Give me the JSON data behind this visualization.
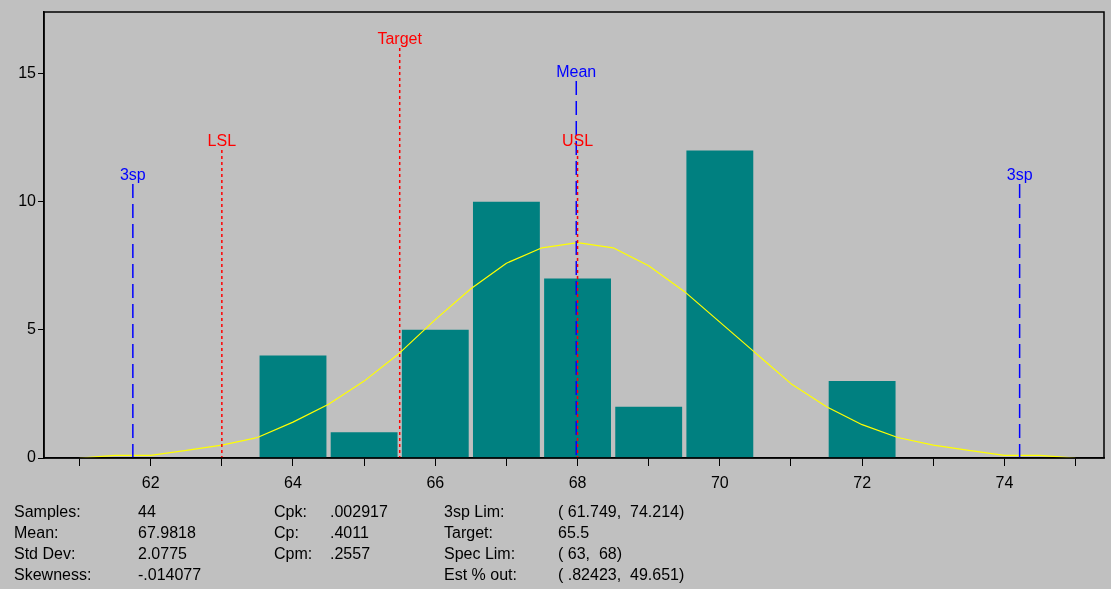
{
  "chart_data": {
    "type": "histogram",
    "bins": [
      63.5,
      64.5,
      65.5,
      66.5,
      67.5,
      68.5,
      69.5,
      70.5,
      71.5,
      72.5
    ],
    "values": [
      4,
      1,
      5,
      10,
      7,
      2,
      12,
      0,
      3
    ],
    "color": "#008080",
    "series": [
      {
        "type": "line",
        "color": "#ffff00",
        "x": [
          61,
          61.5,
          62,
          62.5,
          63,
          63.5,
          64,
          64.5,
          65,
          65.5,
          66,
          66.5,
          67,
          67.5,
          68,
          68.5,
          69,
          69.5,
          70,
          70.5,
          71,
          71.5,
          72,
          72.5,
          73,
          73.5,
          74,
          74.5,
          75
        ],
        "values": [
          0.0,
          0.1,
          0.1,
          0.3,
          0.5,
          0.8,
          1.4,
          2.1,
          3.0,
          4.1,
          5.4,
          6.6,
          7.6,
          8.2,
          8.4,
          8.2,
          7.5,
          6.5,
          5.3,
          4.1,
          2.9,
          2.0,
          1.3,
          0.8,
          0.5,
          0.3,
          0.1,
          0.1,
          0.0
        ]
      }
    ],
    "xlim": [
      60.5,
      75.4
    ],
    "xticks": [
      {
        "value": 61,
        "label": null
      },
      62,
      {
        "value": 63,
        "label": null
      },
      64,
      {
        "value": 65,
        "label": null
      },
      66,
      {
        "value": 67,
        "label": null
      },
      68,
      {
        "value": 69,
        "label": null
      },
      70,
      {
        "value": 71,
        "label": null
      },
      72,
      {
        "value": 73,
        "label": null
      },
      74,
      {
        "value": 75,
        "label": null
      }
    ],
    "ylim": [
      0,
      17.4
    ],
    "yticks": [
      0,
      5,
      10,
      15
    ],
    "ref_lines": [
      {
        "axis": "x",
        "value": 61.749,
        "label": "3sp",
        "color": "#0000ff",
        "line_style": "dashed"
      },
      {
        "axis": "x",
        "value": 63,
        "label": "LSL",
        "color": "#ff0000",
        "line_style": "dotted"
      },
      {
        "axis": "x",
        "value": 65.5,
        "label": "Target",
        "color": "#ff0000",
        "line_style": "dotted"
      },
      {
        "axis": "x",
        "value": 67.9818,
        "label": "Mean",
        "color": "#0000ff",
        "line_style": "dashed"
      },
      {
        "axis": "x",
        "value": 68,
        "label": "USL",
        "color": "#ff0000",
        "line_style": "dotted"
      },
      {
        "axis": "x",
        "value": 74.214,
        "label": "3sp",
        "color": "#0000ff",
        "line_style": "dashed"
      }
    ],
    "annotations": [
      "Samples:",
      "44",
      "Cpk:",
      ".002917",
      "3sp Lim:",
      "( 61.749,  74.214)",
      "Mean:",
      "67.9818",
      "Cp:",
      ".4011",
      "Target:",
      "65.5",
      "Std Dev:",
      "2.0775",
      "Cpm:",
      ".2557",
      "Spec Lim:",
      "( 63,  68)",
      "Skewness:",
      "-.014077",
      "Est % out:",
      "( .82423,  49.651)"
    ]
  }
}
